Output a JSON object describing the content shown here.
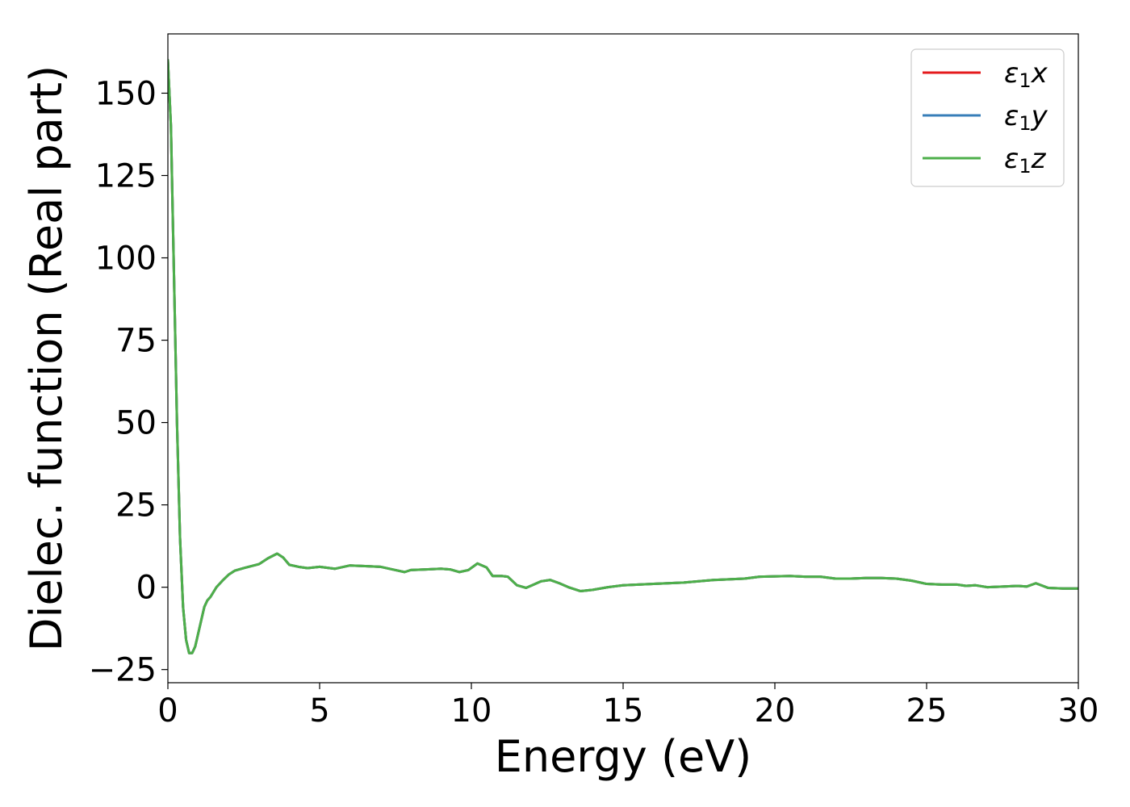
{
  "chart_data": {
    "type": "line",
    "title": "",
    "xlabel": "Energy (eV)",
    "ylabel": "Dielec. function (Real part)",
    "xlim": [
      0,
      30
    ],
    "ylim": [
      -29,
      168
    ],
    "xticks": [
      0,
      5,
      10,
      15,
      20,
      25,
      30
    ],
    "yticks": [
      -25,
      0,
      25,
      50,
      75,
      100,
      125,
      150
    ],
    "grid": false,
    "legend_position": "top-right",
    "series": [
      {
        "name": "ε1x",
        "legend_base": "ε",
        "legend_sub": "1",
        "legend_var": "x",
        "color": "#e41a1c",
        "x": [
          0,
          0.1,
          0.2,
          0.3,
          0.4,
          0.5,
          0.6,
          0.7,
          0.8,
          0.9,
          1.0,
          1.1,
          1.2,
          1.3,
          1.4,
          1.6,
          1.8,
          2.0,
          2.2,
          2.5,
          3.0,
          3.3,
          3.6,
          3.8,
          4.0,
          4.3,
          4.6,
          5.0,
          5.5,
          6.0,
          6.5,
          7.0,
          7.5,
          7.8,
          8.0,
          8.5,
          9.0,
          9.3,
          9.6,
          9.9,
          10.2,
          10.5,
          10.7,
          11.0,
          11.2,
          11.5,
          11.8,
          12.0,
          12.3,
          12.6,
          12.9,
          13.2,
          13.6,
          14.0,
          14.5,
          15.0,
          16.0,
          17.0,
          18.0,
          19.0,
          19.5,
          20.5,
          21.0,
          21.5,
          22.0,
          22.5,
          23.0,
          23.5,
          24.0,
          24.5,
          25.0,
          25.5,
          26.0,
          26.3,
          26.6,
          27.0,
          27.5,
          28.0,
          28.3,
          28.6,
          29.0,
          29.5,
          30.0
        ],
        "values": [
          160,
          140,
          95,
          50,
          15,
          -6,
          -16,
          -20,
          -20,
          -18,
          -14,
          -10,
          -6,
          -4,
          -3,
          0,
          2,
          3.8,
          5,
          5.8,
          7,
          8.8,
          10.2,
          9,
          6.8,
          6.2,
          5.8,
          6.2,
          5.6,
          6.6,
          6.4,
          6.2,
          5.2,
          4.6,
          5.2,
          5.4,
          5.6,
          5.4,
          4.6,
          5.2,
          7.2,
          6,
          3.4,
          3.4,
          3.2,
          0.6,
          -0.2,
          0.6,
          1.8,
          2.2,
          1.2,
          0,
          -1.2,
          -0.8,
          0,
          0.6,
          1,
          1.4,
          2.2,
          2.6,
          3.2,
          3.4,
          3.2,
          3.2,
          2.6,
          2.6,
          2.8,
          2.8,
          2.6,
          2,
          1,
          0.8,
          0.8,
          0.4,
          0.6,
          0,
          0.2,
          0.4,
          0.2,
          1.2,
          -0.2,
          -0.4,
          -0.4
        ]
      },
      {
        "name": "ε1y",
        "legend_base": "ε",
        "legend_sub": "1",
        "legend_var": "y",
        "color": "#377eb8",
        "x": [
          0,
          0.1,
          0.2,
          0.3,
          0.4,
          0.5,
          0.6,
          0.7,
          0.8,
          0.9,
          1.0,
          1.1,
          1.2,
          1.3,
          1.4,
          1.6,
          1.8,
          2.0,
          2.2,
          2.5,
          3.0,
          3.3,
          3.6,
          3.8,
          4.0,
          4.3,
          4.6,
          5.0,
          5.5,
          6.0,
          6.5,
          7.0,
          7.5,
          7.8,
          8.0,
          8.5,
          9.0,
          9.3,
          9.6,
          9.9,
          10.2,
          10.5,
          10.7,
          11.0,
          11.2,
          11.5,
          11.8,
          12.0,
          12.3,
          12.6,
          12.9,
          13.2,
          13.6,
          14.0,
          14.5,
          15.0,
          16.0,
          17.0,
          18.0,
          19.0,
          19.5,
          20.5,
          21.0,
          21.5,
          22.0,
          22.5,
          23.0,
          23.5,
          24.0,
          24.5,
          25.0,
          25.5,
          26.0,
          26.3,
          26.6,
          27.0,
          27.5,
          28.0,
          28.3,
          28.6,
          29.0,
          29.5,
          30.0
        ],
        "values": [
          160,
          140,
          95,
          50,
          15,
          -6,
          -16,
          -20,
          -20,
          -18,
          -14,
          -10,
          -6,
          -4,
          -3,
          0,
          2,
          3.8,
          5,
          5.8,
          7,
          8.8,
          10.2,
          9,
          6.8,
          6.2,
          5.8,
          6.2,
          5.6,
          6.6,
          6.4,
          6.2,
          5.2,
          4.6,
          5.2,
          5.4,
          5.6,
          5.4,
          4.6,
          5.2,
          7.2,
          6,
          3.4,
          3.4,
          3.2,
          0.6,
          -0.2,
          0.6,
          1.8,
          2.2,
          1.2,
          0,
          -1.2,
          -0.8,
          0,
          0.6,
          1,
          1.4,
          2.2,
          2.6,
          3.2,
          3.4,
          3.2,
          3.2,
          2.6,
          2.6,
          2.8,
          2.8,
          2.6,
          2,
          1,
          0.8,
          0.8,
          0.4,
          0.6,
          0,
          0.2,
          0.4,
          0.2,
          1.2,
          -0.2,
          -0.4,
          -0.4
        ]
      },
      {
        "name": "ε1z",
        "legend_base": "ε",
        "legend_sub": "1",
        "legend_var": "z",
        "color": "#4daf4a",
        "x": [
          0,
          0.1,
          0.2,
          0.3,
          0.4,
          0.5,
          0.6,
          0.7,
          0.8,
          0.9,
          1.0,
          1.1,
          1.2,
          1.3,
          1.4,
          1.6,
          1.8,
          2.0,
          2.2,
          2.5,
          3.0,
          3.3,
          3.6,
          3.8,
          4.0,
          4.3,
          4.6,
          5.0,
          5.5,
          6.0,
          6.5,
          7.0,
          7.5,
          7.8,
          8.0,
          8.5,
          9.0,
          9.3,
          9.6,
          9.9,
          10.2,
          10.5,
          10.7,
          11.0,
          11.2,
          11.5,
          11.8,
          12.0,
          12.3,
          12.6,
          12.9,
          13.2,
          13.6,
          14.0,
          14.5,
          15.0,
          16.0,
          17.0,
          18.0,
          19.0,
          19.5,
          20.5,
          21.0,
          21.5,
          22.0,
          22.5,
          23.0,
          23.5,
          24.0,
          24.5,
          25.0,
          25.5,
          26.0,
          26.3,
          26.6,
          27.0,
          27.5,
          28.0,
          28.3,
          28.6,
          29.0,
          29.5,
          30.0
        ],
        "values": [
          160,
          140,
          95,
          50,
          15,
          -6,
          -16,
          -20,
          -20,
          -18,
          -14,
          -10,
          -6,
          -4,
          -3,
          0,
          2,
          3.8,
          5,
          5.8,
          7,
          8.8,
          10.2,
          9,
          6.8,
          6.2,
          5.8,
          6.2,
          5.6,
          6.6,
          6.4,
          6.2,
          5.2,
          4.6,
          5.2,
          5.4,
          5.6,
          5.4,
          4.6,
          5.2,
          7.2,
          6,
          3.4,
          3.4,
          3.2,
          0.6,
          -0.2,
          0.6,
          1.8,
          2.2,
          1.2,
          0,
          -1.2,
          -0.8,
          0,
          0.6,
          1,
          1.4,
          2.2,
          2.6,
          3.2,
          3.4,
          3.2,
          3.2,
          2.6,
          2.6,
          2.8,
          2.8,
          2.6,
          2,
          1,
          0.8,
          0.8,
          0.4,
          0.6,
          0,
          0.2,
          0.4,
          0.2,
          1.2,
          -0.2,
          -0.4,
          -0.4
        ]
      }
    ]
  }
}
